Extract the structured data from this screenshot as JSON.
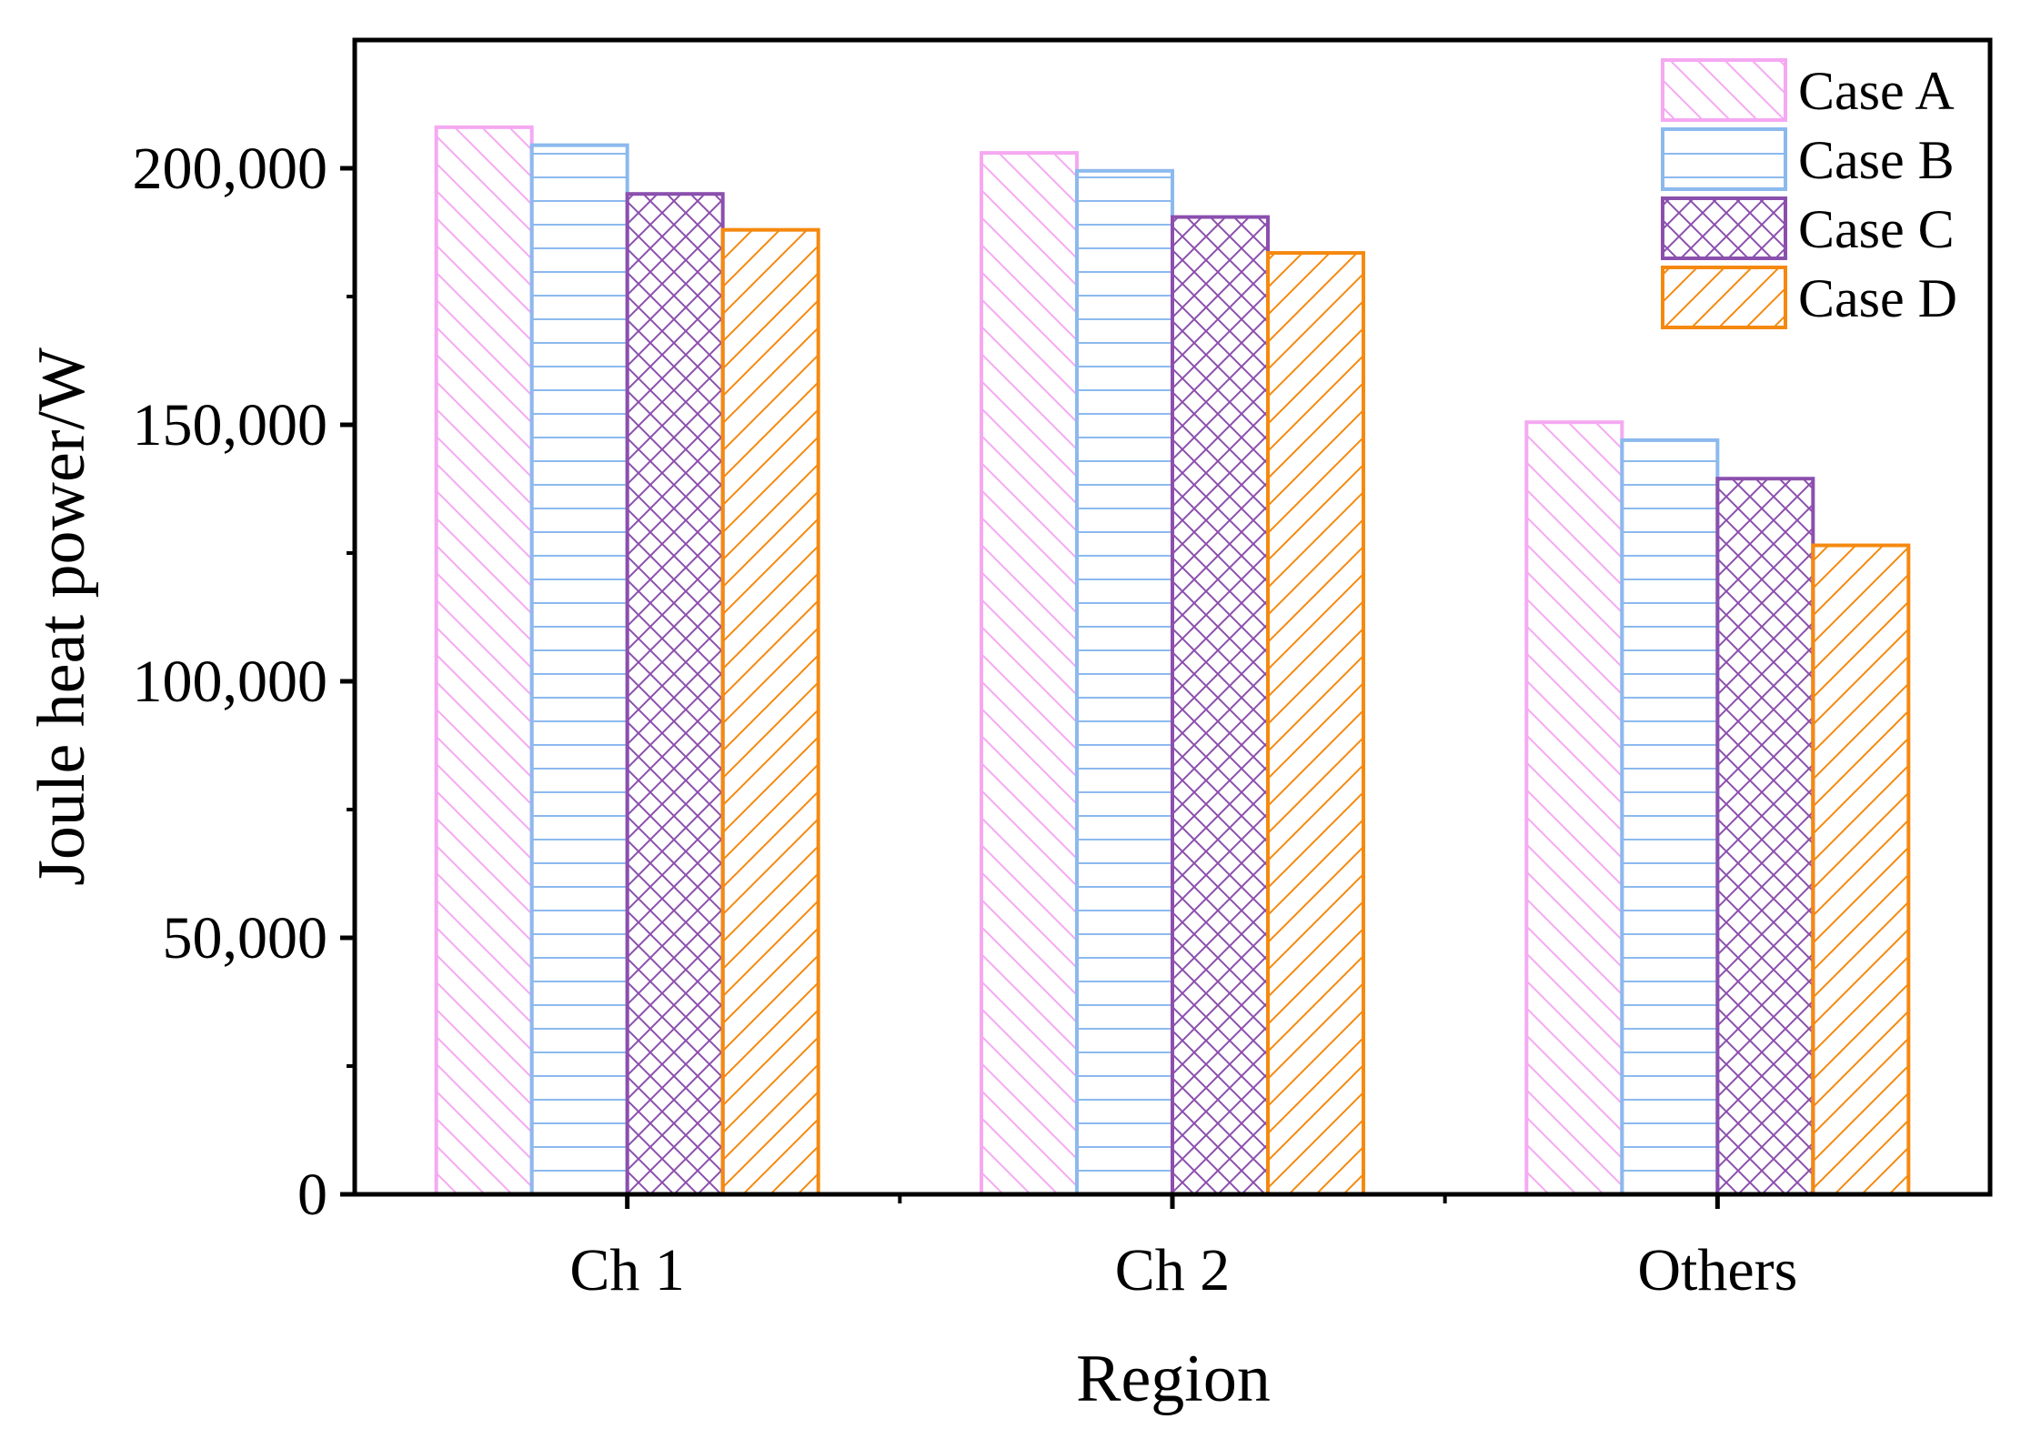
{
  "chart_data": {
    "type": "bar",
    "title": "",
    "xlabel": "Region",
    "ylabel": "Joule heat power/W",
    "categories": [
      "Ch 1",
      "Ch 2",
      "Others"
    ],
    "series": [
      {
        "name": "Case A",
        "color": "#F5A9F2",
        "pattern": "diag-down",
        "values": [
          208000,
          203000,
          150500
        ]
      },
      {
        "name": "Case B",
        "color": "#8CB9EE",
        "pattern": "horizontal",
        "values": [
          204500,
          199500,
          147000
        ]
      },
      {
        "name": "Case C",
        "color": "#8B4FAE",
        "pattern": "crosshatch",
        "values": [
          195000,
          190500,
          139500
        ]
      },
      {
        "name": "Case D",
        "color": "#F5890F",
        "pattern": "diag-up",
        "values": [
          188000,
          183500,
          126500
        ]
      }
    ],
    "ylim": [
      0,
      225000
    ],
    "yticks": [
      0,
      50000,
      100000,
      150000,
      200000
    ],
    "ytick_labels": [
      "0",
      "50,000",
      "100,000",
      "150,000",
      "200,000"
    ],
    "legend_position": "top-right",
    "grid": false
  }
}
